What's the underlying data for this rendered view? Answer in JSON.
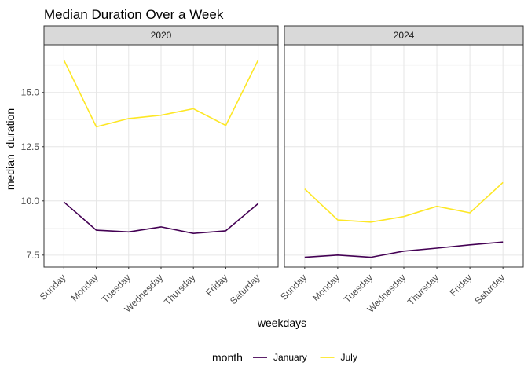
{
  "chart_data": {
    "type": "line",
    "title": "Median Duration Over a Week",
    "xlabel": "weekdays",
    "ylabel": "median_duration",
    "categories": [
      "Sunday",
      "Monday",
      "Tuesday",
      "Wednesday",
      "Thursday",
      "Friday",
      "Saturday"
    ],
    "y_ticks": [
      7.5,
      10.0,
      12.5,
      15.0
    ],
    "y_tick_labels": [
      "7.5",
      "10.0",
      "12.5",
      "15.0"
    ],
    "ylim": [
      6.95,
      17.2
    ],
    "grid": true,
    "legend_position": "bottom",
    "legend_title": "month",
    "colors": {
      "January": "#440154",
      "July": "#FDE725"
    },
    "panels": [
      {
        "label": "2020",
        "series": [
          {
            "name": "January",
            "values": [
              9.95,
              8.65,
              8.57,
              8.8,
              8.5,
              8.62,
              9.88
            ]
          },
          {
            "name": "July",
            "values": [
              16.5,
              13.42,
              13.8,
              13.95,
              14.25,
              13.48,
              16.5
            ]
          }
        ]
      },
      {
        "label": "2024",
        "series": [
          {
            "name": "January",
            "values": [
              7.4,
              7.5,
              7.4,
              7.68,
              7.82,
              7.97,
              8.1
            ]
          },
          {
            "name": "July",
            "values": [
              10.55,
              9.12,
              9.02,
              9.28,
              9.75,
              9.45,
              10.85
            ]
          }
        ]
      }
    ]
  }
}
